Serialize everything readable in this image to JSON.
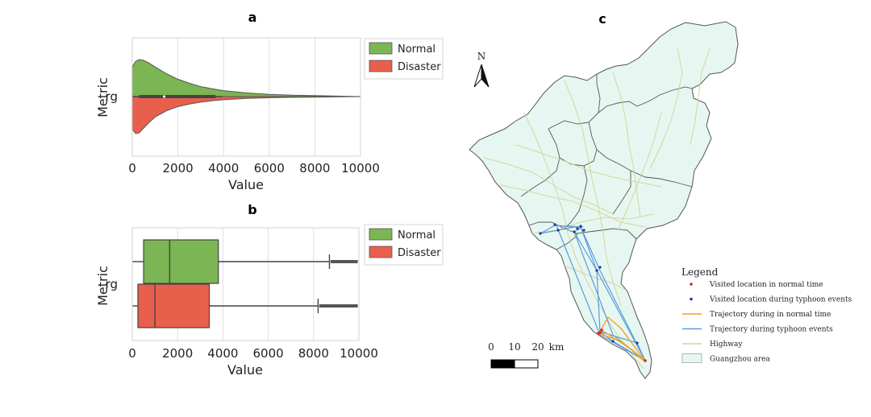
{
  "chart_data": [
    {
      "id": "a",
      "type": "violin",
      "title": "a",
      "xlabel": "Value",
      "ylabel": "Metric",
      "category": "rg",
      "xlim": [
        0,
        10000
      ],
      "xticks": [
        0,
        2000,
        4000,
        6000,
        8000,
        10000
      ],
      "xtick_labels": [
        "0",
        "2000",
        "4000",
        "6000",
        "8000",
        "10000"
      ],
      "grid": true,
      "legend": "top-right (outside)",
      "series": [
        {
          "name": "Normal",
          "color": "#7cb554",
          "side": "upper",
          "density_x": [
            0,
            150,
            300,
            450,
            700,
            1000,
            1500,
            2000,
            2500,
            3000,
            3500,
            4000,
            5000,
            6000,
            7000,
            8000,
            9000,
            10000
          ],
          "density_y": [
            0.8,
            0.95,
            1.0,
            0.99,
            0.92,
            0.8,
            0.62,
            0.47,
            0.36,
            0.27,
            0.21,
            0.16,
            0.1,
            0.06,
            0.04,
            0.025,
            0.012,
            0.0
          ]
        },
        {
          "name": "Disaster",
          "color": "#e8604c",
          "side": "lower",
          "density_x": [
            0,
            150,
            300,
            450,
            700,
            1000,
            1500,
            2000,
            2500,
            3000,
            3500,
            4000,
            5000,
            6000,
            7000,
            8000,
            9000,
            10000
          ],
          "density_y": [
            0.88,
            1.0,
            0.98,
            0.88,
            0.72,
            0.55,
            0.38,
            0.27,
            0.2,
            0.15,
            0.11,
            0.085,
            0.05,
            0.03,
            0.02,
            0.012,
            0.006,
            0.0
          ]
        }
      ],
      "inner_box": {
        "q1": 300,
        "median": 1400,
        "q3": 3650
      }
    },
    {
      "id": "b",
      "type": "box",
      "title": "b",
      "xlabel": "Value",
      "ylabel": "Metric",
      "category": "rg",
      "xlim": [
        0,
        10000
      ],
      "xticks": [
        0,
        2000,
        4000,
        6000,
        8000,
        10000
      ],
      "xtick_labels": [
        "0",
        "2000",
        "4000",
        "6000",
        "8000",
        "10000"
      ],
      "grid": true,
      "legend": "top-right (outside)",
      "series": [
        {
          "name": "Normal",
          "color": "#7cb554",
          "whisker_low": 0,
          "q1": 500,
          "median": 1650,
          "q3": 3800,
          "whisker_high": 8700,
          "outliers_from": 8750,
          "outliers_to": 9950
        },
        {
          "name": "Disaster",
          "color": "#e8604c",
          "whisker_low": 0,
          "q1": 250,
          "median": 1000,
          "q3": 3400,
          "whisker_high": 8200,
          "outliers_from": 8250,
          "outliers_to": 9950
        }
      ]
    }
  ],
  "map": {
    "title": "c",
    "north_label": "N",
    "scale_labels": [
      "0",
      "10",
      "20",
      "km"
    ],
    "legend_title": "Legend",
    "legend_items": [
      {
        "label": "Visited location in normal time",
        "kind": "dot",
        "color": "#e02020"
      },
      {
        "label": "Visited location during typhoon events",
        "kind": "dot",
        "color": "#1a3a8a"
      },
      {
        "label": "Trajectory during in normal time",
        "kind": "line",
        "color": "#f0a020"
      },
      {
        "label": "Trajectory during typhoon events",
        "kind": "line",
        "color": "#5b9bdc"
      },
      {
        "label": "Highway",
        "kind": "line",
        "color": "#d4d49a"
      },
      {
        "label": "Guangzhou area",
        "kind": "box",
        "color": "#e6f7f1"
      }
    ],
    "area_color": "#e6f7f1",
    "boundary_color": "#555555",
    "highway_color": "#d4d49a"
  }
}
